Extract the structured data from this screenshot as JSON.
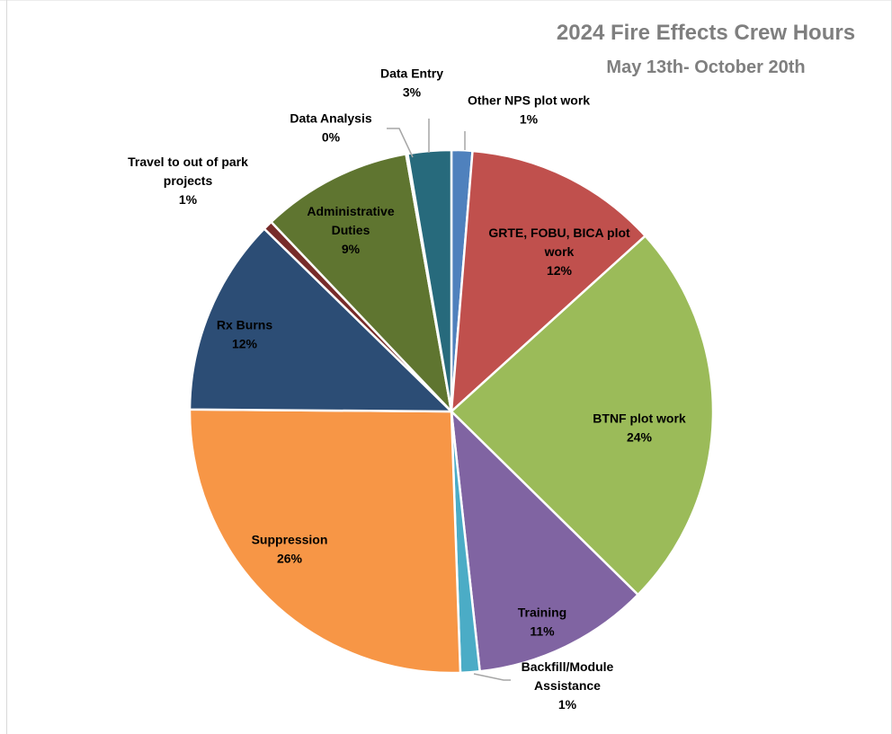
{
  "chart_data": {
    "type": "pie",
    "title": "2024 Fire Effects Crew Hours",
    "subtitle": "May 13th- October 20th",
    "start_angle_deg": 0,
    "direction": "clockwise",
    "slices": [
      {
        "name": "Other NPS plot work",
        "label_lines": [
          "Other NPS plot work"
        ],
        "percent_label": "1%",
        "value": 1.3,
        "color": "#4f81bd"
      },
      {
        "name": "GRTE, FOBU, BICA plot work",
        "label_lines": [
          "GRTE, FOBU, BICA plot",
          "work"
        ],
        "percent_label": "12%",
        "value": 12.1,
        "color": "#c0504d"
      },
      {
        "name": "BTNF plot work",
        "label_lines": [
          "BTNF plot work"
        ],
        "percent_label": "24%",
        "value": 24.3,
        "color": "#9bbb59"
      },
      {
        "name": "Training",
        "label_lines": [
          "Training"
        ],
        "percent_label": "11%",
        "value": 11.0,
        "color": "#8064a2"
      },
      {
        "name": "Backfill/Module Assistance",
        "label_lines": [
          "Backfill/Module",
          "Assistance"
        ],
        "percent_label": "1%",
        "value": 1.2,
        "color": "#4bacc6"
      },
      {
        "name": "Suppression",
        "label_lines": [
          "Suppression"
        ],
        "percent_label": "26%",
        "value": 25.9,
        "color": "#f79646"
      },
      {
        "name": "Rx Burns",
        "label_lines": [
          "Rx Burns"
        ],
        "percent_label": "12%",
        "value": 12.3,
        "color": "#2c4d75"
      },
      {
        "name": "Travel to out of park projects",
        "label_lines": [
          "Travel to out of park",
          "projects"
        ],
        "percent_label": "1%",
        "value": 0.6,
        "color": "#772c2a"
      },
      {
        "name": "Administrative Duties",
        "label_lines": [
          "Administrative",
          "Duties"
        ],
        "percent_label": "9%",
        "value": 9.4,
        "color": "#5f7530"
      },
      {
        "name": "Data Analysis",
        "label_lines": [
          "Data Analysis"
        ],
        "percent_label": "0%",
        "value": 0.1,
        "color": "#4d3b62"
      },
      {
        "name": "Data Entry",
        "label_lines": [
          "Data Entry"
        ],
        "percent_label": "3%",
        "value": 2.7,
        "color": "#276a7c"
      }
    ]
  }
}
